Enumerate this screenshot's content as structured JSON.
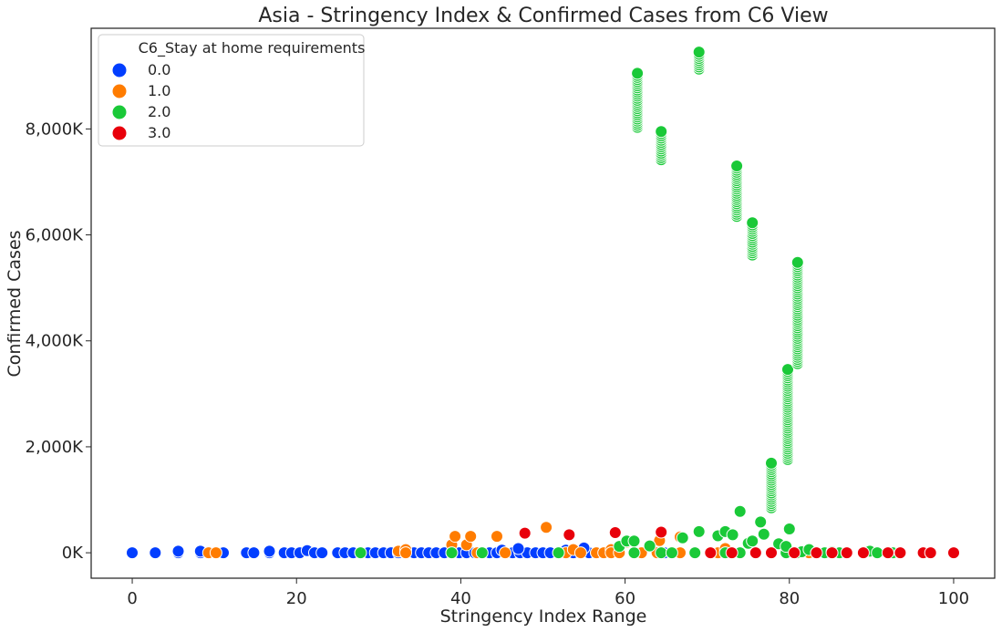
{
  "chart_data": {
    "type": "scatter",
    "title": "Asia - Stringency Index & Confirmed Cases from C6 View",
    "xlabel": "Stringency Index Range",
    "ylabel": "Confirmed Cases",
    "xlim": [
      -5,
      105
    ],
    "ylim": [
      -480000,
      9900000
    ],
    "x_ticks": [
      0,
      20,
      40,
      60,
      80,
      100
    ],
    "x_tick_labels": [
      "0",
      "20",
      "40",
      "60",
      "80",
      "100"
    ],
    "y_ticks": [
      0,
      2000000,
      4000000,
      6000000,
      8000000
    ],
    "y_tick_labels": [
      "0K",
      "2,000K",
      "4,000K",
      "6,000K",
      "8,000K"
    ],
    "grid": false,
    "legend": {
      "title": "C6_Stay at home requirements",
      "placement": "top-left",
      "entries": [
        "0.0",
        "1.0",
        "2.0",
        "3.0"
      ]
    },
    "colors": {
      "0.0": "#023eff",
      "1.0": "#ff7c00",
      "2.0": "#1ac938",
      "3.0": "#e8000b"
    },
    "series": [
      {
        "name": "0.0",
        "points": [
          [
            0,
            0
          ],
          [
            2.8,
            0
          ],
          [
            5.6,
            0
          ],
          [
            5.6,
            30000
          ],
          [
            8.3,
            0
          ],
          [
            8.3,
            30000
          ],
          [
            11.1,
            0
          ],
          [
            13.9,
            0
          ],
          [
            14.8,
            0
          ],
          [
            16.7,
            0
          ],
          [
            16.7,
            30000
          ],
          [
            18.5,
            0
          ],
          [
            19.4,
            0
          ],
          [
            20.4,
            0
          ],
          [
            21.3,
            40000
          ],
          [
            22.2,
            0
          ],
          [
            23.1,
            0
          ],
          [
            25,
            0
          ],
          [
            25.9,
            0
          ],
          [
            26.9,
            0
          ],
          [
            27.8,
            0
          ],
          [
            28.7,
            0
          ],
          [
            29.6,
            0
          ],
          [
            30.6,
            0
          ],
          [
            31.5,
            0
          ],
          [
            32.4,
            0
          ],
          [
            33.3,
            0
          ],
          [
            34.3,
            0
          ],
          [
            35.2,
            0
          ],
          [
            36.1,
            0
          ],
          [
            37,
            0
          ],
          [
            38,
            0
          ],
          [
            38.9,
            0
          ],
          [
            39.8,
            0
          ],
          [
            40.7,
            0
          ],
          [
            41.7,
            0
          ],
          [
            42.6,
            0
          ],
          [
            43.5,
            0
          ],
          [
            44.4,
            0
          ],
          [
            45.4,
            0
          ],
          [
            46.3,
            0
          ],
          [
            47.2,
            0
          ],
          [
            48.1,
            0
          ],
          [
            49.1,
            0
          ],
          [
            50,
            0
          ],
          [
            50.9,
            0
          ],
          [
            51.9,
            0
          ],
          [
            52.8,
            0
          ],
          [
            53.7,
            0
          ],
          [
            54.6,
            0
          ],
          [
            55.6,
            0
          ],
          [
            56.5,
            0
          ],
          [
            57.4,
            0
          ],
          [
            58.3,
            0
          ],
          [
            61.1,
            0
          ],
          [
            62,
            0
          ],
          [
            64.8,
            0
          ],
          [
            65.7,
            0
          ],
          [
            66.7,
            0
          ],
          [
            70.4,
            0
          ],
          [
            47,
            80000
          ],
          [
            55,
            90000
          ],
          [
            45,
            50000
          ],
          [
            52.8,
            50000
          ]
        ]
      },
      {
        "name": "1.0",
        "points": [
          [
            9.3,
            0
          ],
          [
            10.2,
            0
          ],
          [
            32.4,
            30000
          ],
          [
            33.3,
            60000
          ],
          [
            33.3,
            0
          ],
          [
            38.9,
            0
          ],
          [
            38.9,
            150000
          ],
          [
            39.3,
            310000
          ],
          [
            40.7,
            150000
          ],
          [
            41.2,
            310000
          ],
          [
            42,
            0
          ],
          [
            44.4,
            310000
          ],
          [
            45.4,
            0
          ],
          [
            50.4,
            480000
          ],
          [
            52.8,
            0
          ],
          [
            53.7,
            60000
          ],
          [
            54.6,
            0
          ],
          [
            56.5,
            0
          ],
          [
            57.4,
            0
          ],
          [
            58.3,
            60000
          ],
          [
            58.3,
            0
          ],
          [
            59.3,
            0
          ],
          [
            60.2,
            200000
          ],
          [
            61.1,
            0
          ],
          [
            62,
            0
          ],
          [
            63.9,
            0
          ],
          [
            64.2,
            230000
          ],
          [
            66.7,
            0
          ],
          [
            66.7,
            300000
          ],
          [
            68.5,
            0
          ],
          [
            70.4,
            0
          ],
          [
            71.3,
            0
          ],
          [
            72.2,
            0
          ],
          [
            72.2,
            80000
          ],
          [
            73.1,
            0
          ],
          [
            75.9,
            0
          ],
          [
            77.8,
            0
          ],
          [
            79.6,
            0
          ],
          [
            82.4,
            0
          ]
        ]
      },
      {
        "name": "2.0",
        "points": [
          [
            27.8,
            0
          ],
          [
            38.9,
            0
          ],
          [
            42.6,
            0
          ],
          [
            51.9,
            0
          ],
          [
            59.3,
            120000
          ],
          [
            60.2,
            220000
          ],
          [
            61.1,
            0
          ],
          [
            61.1,
            220000
          ],
          [
            63,
            130000
          ],
          [
            64.4,
            0
          ],
          [
            65.7,
            0
          ],
          [
            67,
            280000
          ],
          [
            68.5,
            0
          ],
          [
            69,
            400000
          ],
          [
            70.4,
            0
          ],
          [
            71.3,
            320000
          ],
          [
            72.2,
            400000
          ],
          [
            72.2,
            0
          ],
          [
            73.1,
            0
          ],
          [
            73.1,
            340000
          ],
          [
            74,
            780000
          ],
          [
            74,
            0
          ],
          [
            75,
            180000
          ],
          [
            75.5,
            220000
          ],
          [
            75.9,
            0
          ],
          [
            76.5,
            580000
          ],
          [
            76.9,
            350000
          ],
          [
            77.8,
            0
          ],
          [
            78.7,
            170000
          ],
          [
            79.6,
            0
          ],
          [
            79.6,
            120000
          ],
          [
            80,
            450000
          ],
          [
            81,
            0
          ],
          [
            81.5,
            20000
          ],
          [
            82.4,
            60000
          ],
          [
            83.3,
            0
          ],
          [
            84.3,
            0
          ],
          [
            85.2,
            20000
          ],
          [
            86.1,
            0
          ],
          [
            87,
            0
          ],
          [
            89.8,
            30000
          ],
          [
            90.7,
            0
          ],
          [
            92.6,
            0
          ],
          [
            93.5,
            0
          ],
          [
            96.3,
            0
          ]
        ]
      },
      {
        "name": "3.0",
        "points": [
          [
            47.8,
            370000
          ],
          [
            53.2,
            340000
          ],
          [
            58.8,
            380000
          ],
          [
            64.4,
            390000
          ],
          [
            70.4,
            0
          ],
          [
            73,
            0
          ],
          [
            75.9,
            0
          ],
          [
            77.8,
            0
          ],
          [
            80.6,
            0
          ],
          [
            83.3,
            0
          ],
          [
            85.2,
            0
          ],
          [
            87,
            0
          ],
          [
            89,
            0
          ],
          [
            92,
            0
          ],
          [
            93.5,
            0
          ],
          [
            96.3,
            0
          ],
          [
            97.2,
            0
          ],
          [
            100,
            0
          ]
        ]
      }
    ],
    "vertical_runs": [
      {
        "series": "2.0",
        "x": 61.5,
        "y_min": 8030000,
        "y_max": 9050000
      },
      {
        "series": "2.0",
        "x": 64.4,
        "y_min": 7420000,
        "y_max": 7950000
      },
      {
        "series": "2.0",
        "x": 69.0,
        "y_min": 9130000,
        "y_max": 9450000
      },
      {
        "series": "2.0",
        "x": 73.6,
        "y_min": 6350000,
        "y_max": 7300000
      },
      {
        "series": "2.0",
        "x": 75.5,
        "y_min": 5620000,
        "y_max": 6230000
      },
      {
        "series": "2.0",
        "x": 77.8,
        "y_min": 850000,
        "y_max": 1690000
      },
      {
        "series": "2.0",
        "x": 79.8,
        "y_min": 1760000,
        "y_max": 3460000
      },
      {
        "series": "2.0",
        "x": 81.0,
        "y_min": 3570000,
        "y_max": 5480000
      }
    ]
  }
}
